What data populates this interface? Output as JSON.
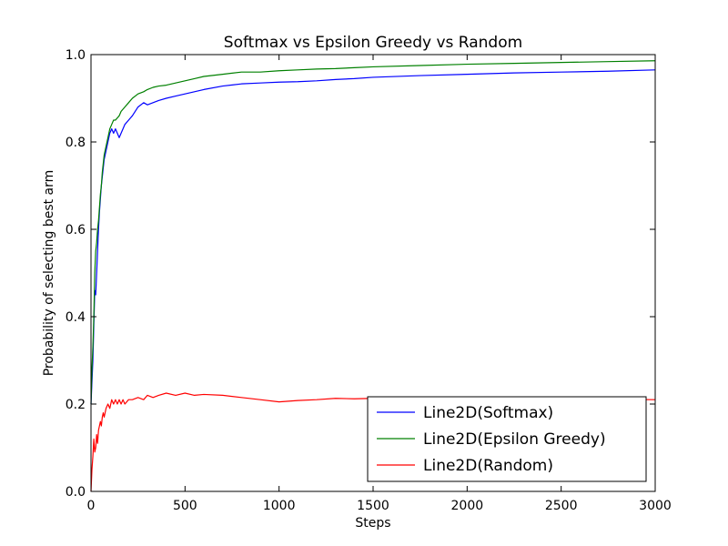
{
  "chart_data": {
    "type": "line",
    "title": "Softmax vs Epsilon Greedy vs Random",
    "xlabel": "Steps",
    "ylabel": "Probability of selecting best arm",
    "xlim": [
      0,
      3000
    ],
    "ylim": [
      0.0,
      1.0
    ],
    "xticks": [
      0,
      500,
      1000,
      1500,
      2000,
      2500,
      3000
    ],
    "xtick_labels": [
      "0",
      "500",
      "1000",
      "1500",
      "2000",
      "2500",
      "3000"
    ],
    "yticks": [
      0.0,
      0.2,
      0.4,
      0.6,
      0.8,
      1.0
    ],
    "ytick_labels": [
      "0.0",
      "0.2",
      "0.4",
      "0.6",
      "0.8",
      "1.0"
    ],
    "grid": false,
    "legend_position": "lower-right",
    "series": [
      {
        "name": "Line2D(Softmax)",
        "color": "#0000ff",
        "x": [
          0,
          5,
          10,
          15,
          20,
          25,
          30,
          35,
          40,
          45,
          50,
          55,
          60,
          65,
          70,
          80,
          90,
          100,
          110,
          120,
          130,
          140,
          150,
          160,
          170,
          180,
          200,
          220,
          250,
          280,
          300,
          330,
          360,
          400,
          450,
          500,
          550,
          600,
          700,
          800,
          900,
          1000,
          1100,
          1200,
          1300,
          1400,
          1500,
          1750,
          2000,
          2250,
          2500,
          2750,
          3000
        ],
        "y": [
          0.2,
          0.25,
          0.3,
          0.38,
          0.46,
          0.45,
          0.5,
          0.55,
          0.6,
          0.64,
          0.67,
          0.7,
          0.72,
          0.74,
          0.76,
          0.78,
          0.8,
          0.82,
          0.83,
          0.82,
          0.83,
          0.82,
          0.81,
          0.82,
          0.83,
          0.84,
          0.85,
          0.86,
          0.88,
          0.89,
          0.885,
          0.89,
          0.895,
          0.9,
          0.905,
          0.91,
          0.915,
          0.92,
          0.928,
          0.933,
          0.935,
          0.937,
          0.938,
          0.94,
          0.943,
          0.945,
          0.948,
          0.952,
          0.955,
          0.958,
          0.96,
          0.962,
          0.965
        ]
      },
      {
        "name": "Line2D(Epsilon Greedy)",
        "color": "#008000",
        "x": [
          0,
          5,
          10,
          15,
          20,
          25,
          30,
          35,
          40,
          45,
          50,
          55,
          60,
          65,
          70,
          80,
          90,
          100,
          110,
          120,
          130,
          140,
          150,
          160,
          170,
          180,
          200,
          220,
          250,
          280,
          300,
          330,
          360,
          400,
          450,
          500,
          550,
          600,
          700,
          800,
          900,
          1000,
          1100,
          1200,
          1300,
          1400,
          1500,
          1750,
          2000,
          2250,
          2500,
          2750,
          3000
        ],
        "y": [
          0.2,
          0.28,
          0.33,
          0.4,
          0.5,
          0.55,
          0.57,
          0.6,
          0.62,
          0.65,
          0.68,
          0.7,
          0.73,
          0.75,
          0.77,
          0.79,
          0.81,
          0.83,
          0.84,
          0.85,
          0.85,
          0.855,
          0.86,
          0.87,
          0.875,
          0.88,
          0.89,
          0.9,
          0.91,
          0.915,
          0.92,
          0.925,
          0.928,
          0.93,
          0.935,
          0.94,
          0.945,
          0.95,
          0.955,
          0.96,
          0.96,
          0.963,
          0.965,
          0.967,
          0.968,
          0.97,
          0.972,
          0.975,
          0.978,
          0.98,
          0.982,
          0.984,
          0.986
        ]
      },
      {
        "name": "Line2D(Random)",
        "color": "#ff0000",
        "x": [
          0,
          5,
          10,
          15,
          20,
          25,
          30,
          35,
          40,
          45,
          50,
          55,
          60,
          65,
          70,
          80,
          90,
          100,
          110,
          120,
          130,
          140,
          150,
          160,
          170,
          180,
          200,
          220,
          250,
          280,
          300,
          330,
          360,
          400,
          450,
          500,
          550,
          600,
          700,
          800,
          900,
          1000,
          1100,
          1200,
          1300,
          1400,
          1500,
          1750,
          2000,
          2250,
          2500,
          2750,
          3000
        ],
        "y": [
          0.0,
          0.05,
          0.08,
          0.12,
          0.09,
          0.1,
          0.13,
          0.11,
          0.14,
          0.15,
          0.16,
          0.15,
          0.17,
          0.18,
          0.17,
          0.19,
          0.2,
          0.19,
          0.21,
          0.2,
          0.21,
          0.2,
          0.21,
          0.2,
          0.21,
          0.2,
          0.21,
          0.21,
          0.215,
          0.21,
          0.22,
          0.215,
          0.22,
          0.225,
          0.22,
          0.225,
          0.22,
          0.222,
          0.22,
          0.215,
          0.21,
          0.205,
          0.208,
          0.21,
          0.213,
          0.212,
          0.213,
          0.212,
          0.212,
          0.211,
          0.211,
          0.211,
          0.21
        ]
      }
    ]
  }
}
